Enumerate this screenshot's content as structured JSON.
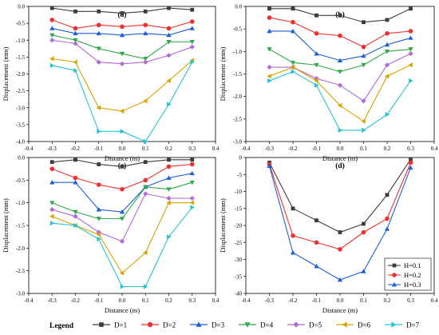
{
  "legend_title": "Legend",
  "chart_data": [
    {
      "type": "line",
      "title": "(a)",
      "xlabel": "Distance (m)",
      "ylabel": "Displacement (mm)",
      "xlim": [
        -0.4,
        0.4
      ],
      "ylim": [
        -4.0,
        0.0
      ],
      "xticks": [
        "-0.4",
        "-0.3",
        "-0.2",
        "-0.1",
        "0.0",
        "0.1",
        "0.2",
        "0.3",
        "0.4"
      ],
      "yticks": [
        "0.0",
        "-0.5",
        "-1.0",
        "-1.5",
        "-2.0",
        "-2.5",
        "-3.0",
        "-3.5",
        "-4.0"
      ],
      "x": [
        -0.3,
        -0.2,
        -0.1,
        0.0,
        0.1,
        0.2,
        0.3
      ],
      "series": [
        {
          "name": "D=1",
          "values": [
            -0.05,
            -0.15,
            -0.15,
            -0.2,
            -0.15,
            -0.05,
            -0.1
          ]
        },
        {
          "name": "D=2",
          "values": [
            -0.4,
            -0.65,
            -0.55,
            -0.6,
            -0.55,
            -0.65,
            -0.45
          ]
        },
        {
          "name": "D=3",
          "values": [
            -0.65,
            -0.8,
            -0.8,
            -0.85,
            -0.8,
            -0.85,
            -0.65
          ]
        },
        {
          "name": "D=4",
          "values": [
            -0.85,
            -1.0,
            -1.25,
            -1.4,
            -1.55,
            -1.05,
            -1.05
          ]
        },
        {
          "name": "D=5",
          "values": [
            -1.0,
            -1.1,
            -1.65,
            -1.7,
            -1.65,
            -1.45,
            -1.2
          ]
        },
        {
          "name": "D=6",
          "values": [
            -1.55,
            -1.65,
            -3.0,
            -3.1,
            -2.8,
            -2.2,
            -1.6
          ]
        },
        {
          "name": "D=7",
          "values": [
            -1.75,
            -1.9,
            -3.7,
            -3.7,
            -4.0,
            -2.9,
            -1.65
          ]
        }
      ]
    },
    {
      "type": "line",
      "title": "(b)",
      "xlabel": "Distance (m)",
      "ylabel": "Displacement (mm)",
      "xlim": [
        -0.4,
        0.4
      ],
      "ylim": [
        -3.0,
        0.0
      ],
      "xticks": [
        "-0.4",
        "-0.3",
        "-0.2",
        "-0.1",
        "0.0",
        "0.1",
        "0.2",
        "0.3",
        "0.4"
      ],
      "yticks": [
        "0.0",
        "-0.5",
        "-1.0",
        "-1.5",
        "-2.0",
        "-2.5",
        "-3.0"
      ],
      "x": [
        -0.3,
        -0.2,
        -0.1,
        0.0,
        0.1,
        0.2,
        0.3
      ],
      "series": [
        {
          "name": "D=1",
          "values": [
            -0.05,
            -0.05,
            -0.2,
            -0.2,
            -0.35,
            -0.3,
            -0.05
          ]
        },
        {
          "name": "D=2",
          "values": [
            -0.25,
            -0.35,
            -0.6,
            -0.65,
            -0.9,
            -0.6,
            -0.55
          ]
        },
        {
          "name": "D=3",
          "values": [
            -0.55,
            -0.55,
            -1.05,
            -1.2,
            -1.1,
            -0.85,
            -0.7
          ]
        },
        {
          "name": "D=4",
          "values": [
            -0.95,
            -1.25,
            -1.3,
            -1.45,
            -1.3,
            -1.0,
            -0.95
          ]
        },
        {
          "name": "D=5",
          "values": [
            -1.35,
            -1.35,
            -1.6,
            -1.75,
            -2.1,
            -1.3,
            -1.05
          ]
        },
        {
          "name": "D=6",
          "values": [
            -1.55,
            -1.35,
            -1.65,
            -2.2,
            -2.55,
            -1.55,
            -1.3
          ]
        },
        {
          "name": "D=7",
          "values": [
            -1.65,
            -1.45,
            -1.75,
            -2.75,
            -2.75,
            -2.4,
            -1.65
          ]
        }
      ]
    },
    {
      "type": "line",
      "title": "(c)",
      "xlabel": "Distance (m)",
      "ylabel": "Displacement (mm)",
      "xlim": [
        -0.4,
        0.4
      ],
      "ylim": [
        -3.0,
        0.0
      ],
      "xticks": [
        "-0.4",
        "-0.3",
        "-0.2",
        "-0.1",
        "0.0",
        "0.1",
        "0.2",
        "0.3",
        "0.4"
      ],
      "yticks": [
        "0.0",
        "-0.5",
        "-1.0",
        "-1.5",
        "-2.0",
        "-2.5",
        "-3.0"
      ],
      "x": [
        -0.3,
        -0.2,
        -0.1,
        0.0,
        0.1,
        0.2,
        0.3
      ],
      "series": [
        {
          "name": "D=1",
          "values": [
            -0.1,
            -0.05,
            -0.15,
            -0.2,
            -0.1,
            -0.05,
            -0.05
          ]
        },
        {
          "name": "D=2",
          "values": [
            -0.25,
            -0.45,
            -0.6,
            -0.7,
            -0.5,
            -0.2,
            -0.15
          ]
        },
        {
          "name": "D=3",
          "values": [
            -0.55,
            -0.55,
            -1.15,
            -1.2,
            -0.65,
            -0.45,
            -0.35
          ]
        },
        {
          "name": "D=4",
          "values": [
            -1.0,
            -1.2,
            -1.35,
            -1.35,
            -0.65,
            -0.7,
            -0.55
          ]
        },
        {
          "name": "D=5",
          "values": [
            -1.15,
            -1.3,
            -1.65,
            -1.85,
            -0.8,
            -0.9,
            -0.9
          ]
        },
        {
          "name": "D=6",
          "values": [
            -1.3,
            -1.5,
            -1.7,
            -2.55,
            -2.1,
            -1.0,
            -1.0
          ]
        },
        {
          "name": "D=7",
          "values": [
            -1.45,
            -1.5,
            -1.8,
            -2.85,
            -2.85,
            -1.75,
            -1.1
          ]
        }
      ]
    },
    {
      "type": "line",
      "title": "(d)",
      "xlabel": "Distance (m)",
      "ylabel": "Displacement (mm)",
      "xlim": [
        -0.4,
        0.4
      ],
      "ylim": [
        -40,
        0
      ],
      "xticks": [
        "-0.4",
        "-0.3",
        "-0.2",
        "-0.1",
        "0.0",
        "0.1",
        "0.2",
        "0.3",
        "0.4"
      ],
      "yticks": [
        "0",
        "-5",
        "-10",
        "-15",
        "-20",
        "-25",
        "-30",
        "-35",
        "-40"
      ],
      "legend": "bottom-right",
      "x": [
        -0.3,
        -0.2,
        -0.1,
        0.0,
        0.1,
        0.2,
        0.3
      ],
      "series": [
        {
          "name": "H=0.1",
          "values": [
            -1.5,
            -15,
            -18.5,
            -22,
            -19.5,
            -11,
            -0.5
          ]
        },
        {
          "name": "H=0.2",
          "values": [
            -2,
            -23,
            -25,
            -27,
            -22,
            -18,
            -1.5
          ]
        },
        {
          "name": "H=0.3",
          "values": [
            -2.5,
            -28,
            -32,
            -36,
            -33.5,
            -21,
            -3
          ]
        }
      ]
    }
  ],
  "legend": [
    {
      "name": "D=1",
      "color": "#3c3c3c",
      "marker": "square"
    },
    {
      "name": "D=2",
      "color": "#f03030",
      "marker": "circle"
    },
    {
      "name": "D=3",
      "color": "#1f5fd6",
      "marker": "triangle-up"
    },
    {
      "name": "D=4",
      "color": "#2ea84a",
      "marker": "triangle-down"
    },
    {
      "name": "D=5",
      "color": "#b36ad8",
      "marker": "diamond"
    },
    {
      "name": "D=6",
      "color": "#d9a400",
      "marker": "triangle-left"
    },
    {
      "name": "D=7",
      "color": "#27c4d6",
      "marker": "triangle-right"
    }
  ],
  "legend_d": [
    {
      "name": "H=0.1",
      "color": "#3c3c3c",
      "marker": "square"
    },
    {
      "name": "H=0.2",
      "color": "#f03030",
      "marker": "circle"
    },
    {
      "name": "H=0.3",
      "color": "#1f5fd6",
      "marker": "triangle-up"
    }
  ]
}
